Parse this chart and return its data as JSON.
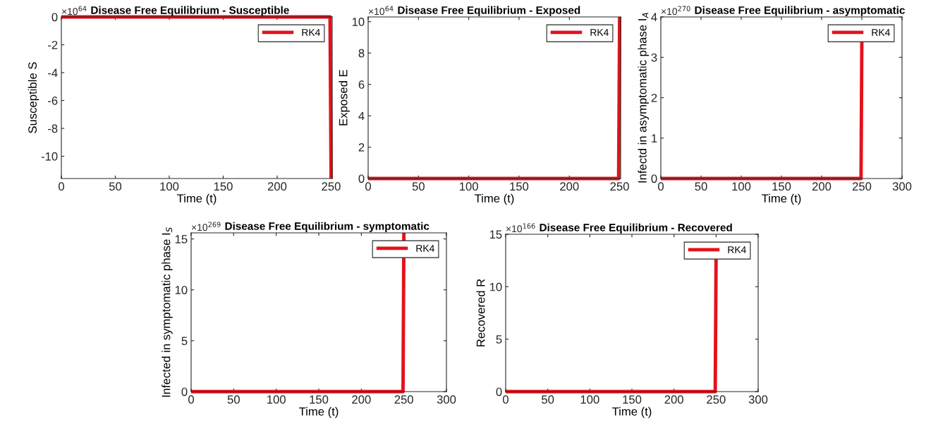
{
  "chart_data": [
    {
      "type": "line",
      "title": "Disease Free Equilibrium - Susceptible",
      "xlabel": "Time (t)",
      "ylabel": "Susceptible S",
      "annotations": [
        "×10$^{64}$"
      ],
      "series": [
        {
          "name": "RK4",
          "color": "#e3121b",
          "x": [
            0,
            249,
            250
          ],
          "values": [
            0,
            0,
            -11.6
          ]
        }
      ],
      "xlim": [
        0,
        251
      ],
      "xticks": [
        0,
        50,
        100,
        150,
        200,
        250
      ],
      "ylim": [
        -11.6,
        0
      ],
      "yticks": [
        -10,
        -8,
        -6,
        -4,
        -2,
        0
      ],
      "legend": "top right",
      "grid": false,
      "line_style": "solid",
      "marker": "none"
    },
    {
      "type": "line",
      "title": "Disease Free Equilibrium - Exposed",
      "xlabel": "Time (t)",
      "ylabel": "Exposed E",
      "annotations": [
        "×10$^{64}$"
      ],
      "series": [
        {
          "name": "RK4",
          "color": "#e3121b",
          "x": [
            0,
            249,
            250
          ],
          "values": [
            0,
            0,
            10.3
          ]
        }
      ],
      "xlim": [
        0,
        251
      ],
      "xticks": [
        0,
        50,
        100,
        150,
        200,
        250
      ],
      "ylim": [
        0,
        10.3
      ],
      "yticks": [
        0,
        2,
        4,
        6,
        8,
        10
      ],
      "legend": "top right",
      "grid": false,
      "line_style": "solid",
      "marker": "none"
    },
    {
      "type": "line",
      "title": "Disease Free Equilibrium - asymptomatic",
      "xlabel": "Time (t)",
      "ylabel": "Infectd in asymptomatic phase I$_{A}$",
      "annotations": [
        "×10$^{270}$"
      ],
      "series": [
        {
          "name": "RK4",
          "color": "#e3121b",
          "x": [
            0,
            249,
            250
          ],
          "values": [
            0,
            0,
            3.4
          ]
        }
      ],
      "xlim": [
        0,
        300
      ],
      "xticks": [
        0,
        50,
        100,
        150,
        200,
        250,
        300
      ],
      "ylim": [
        0,
        4
      ],
      "yticks": [
        0,
        1,
        2,
        3,
        4
      ],
      "legend": "top right",
      "grid": false,
      "line_style": "solid",
      "marker": "none"
    },
    {
      "type": "line",
      "title": "Disease Free Equilibrium - symptomatic",
      "xlabel": "Time (t)",
      "ylabel": "Infected in symptomatic phase I$_{S}$",
      "annotations": [
        "×10$^{269}$"
      ],
      "series": [
        {
          "name": "RK4",
          "color": "#e3121b",
          "x": [
            0,
            249,
            250
          ],
          "values": [
            0,
            0,
            15.6
          ]
        }
      ],
      "xlim": [
        0,
        300
      ],
      "xticks": [
        0,
        50,
        100,
        150,
        200,
        250,
        300
      ],
      "ylim": [
        0,
        15.6
      ],
      "yticks": [
        0,
        5,
        10,
        15
      ],
      "legend": "top right",
      "grid": false,
      "line_style": "solid",
      "marker": "none"
    },
    {
      "type": "line",
      "title": "Disease Free Equilibrium - Recovered",
      "xlabel": "Time (t)",
      "ylabel": "Recovered R",
      "annotations": [
        "×10$^{166}$"
      ],
      "series": [
        {
          "name": "RK4",
          "color": "#e3121b",
          "x": [
            0,
            249,
            250
          ],
          "values": [
            0,
            0,
            12.7
          ]
        }
      ],
      "xlim": [
        0,
        300
      ],
      "xticks": [
        0,
        50,
        100,
        150,
        200,
        250,
        300
      ],
      "ylim": [
        0,
        15
      ],
      "yticks": [
        0,
        5,
        10,
        15
      ],
      "legend": "top right",
      "grid": false,
      "line_style": "solid",
      "marker": "none"
    }
  ]
}
